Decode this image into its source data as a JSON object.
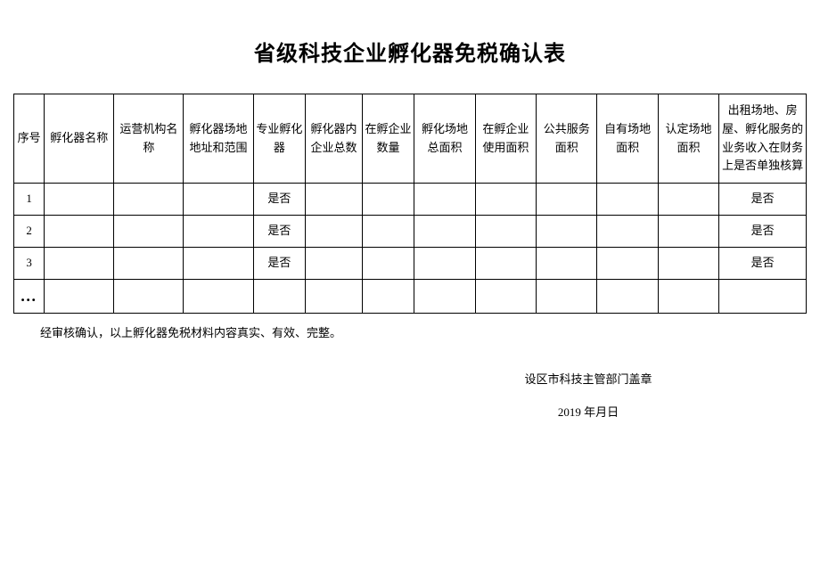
{
  "title": "省级科技企业孵化器免税确认表",
  "headers": {
    "col1": "序号",
    "col2": "孵化器名称",
    "col3": "运营机构名称",
    "col4": "孵化器场地地址和范围",
    "col5": "专业孵化器",
    "col6": "孵化器内企业总数",
    "col7": "在孵企业数量",
    "col8": "孵化场地总面积",
    "col9": "在孵企业使用面积",
    "col10": "公共服务面积",
    "col11": "自有场地面积",
    "col12": "认定场地面积",
    "col13": "出租场地、房屋、孵化服务的业务收入在财务上是否单独核算"
  },
  "rows": [
    {
      "num": "1",
      "prof": "是否",
      "last": "是否"
    },
    {
      "num": "2",
      "prof": "是否",
      "last": "是否"
    },
    {
      "num": "3",
      "prof": "是否",
      "last": "是否"
    },
    {
      "num": "…",
      "prof": "",
      "last": ""
    }
  ],
  "footer": "经审核确认，以上孵化器免税材料内容真实、有效、完整。",
  "stamp": "设区市科技主管部门盖章",
  "date": "2019 年月日",
  "styles": {
    "background_color": "#ffffff",
    "border_color": "#000000",
    "title_fontsize": 24,
    "cell_fontsize": 13,
    "header_row_height": 100,
    "data_row_height": 36
  }
}
